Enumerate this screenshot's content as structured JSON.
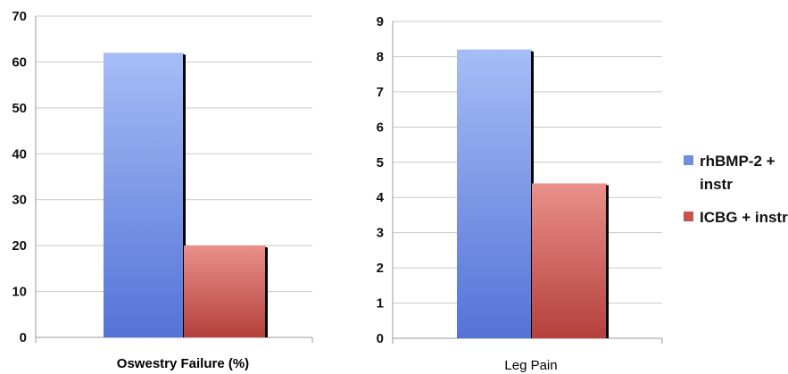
{
  "chart_data": [
    {
      "type": "bar",
      "categories": [
        "Oswestry Failure (%)"
      ],
      "series": [
        {
          "name": "rhBMP-2 + instr",
          "values": [
            62
          ]
        },
        {
          "name": "ICBG + instr",
          "values": [
            20
          ]
        }
      ],
      "xlabel": "Oswestry Failure (%)",
      "ylim": [
        0,
        70
      ],
      "yticks": [
        0,
        10,
        20,
        30,
        40,
        50,
        60,
        70
      ],
      "grid": true
    },
    {
      "type": "bar",
      "categories": [
        "Leg Pain"
      ],
      "series": [
        {
          "name": "rhBMP-2 + instr",
          "values": [
            8.2
          ]
        },
        {
          "name": "ICBG + instr",
          "values": [
            4.4
          ]
        }
      ],
      "xlabel": "Leg Pain",
      "ylim": [
        0,
        9
      ],
      "yticks": [
        0,
        1,
        2,
        3,
        4,
        5,
        6,
        7,
        8,
        9
      ],
      "grid": true
    }
  ],
  "legend": {
    "placement": "right",
    "items": [
      {
        "label_lines": [
          "rhBMP-2 +",
          "instr"
        ],
        "color": "#6f8fe0"
      },
      {
        "label_lines": [
          "ICBG + instr"
        ],
        "color": "#c8524f"
      }
    ]
  },
  "colors": {
    "series1_light": "#a6bdf6",
    "series1_dark": "#5473d6",
    "series2_light": "#e9908a",
    "series2_dark": "#b5403c",
    "gridline": "#c9c9c9",
    "axis": "#9a9a9a"
  }
}
